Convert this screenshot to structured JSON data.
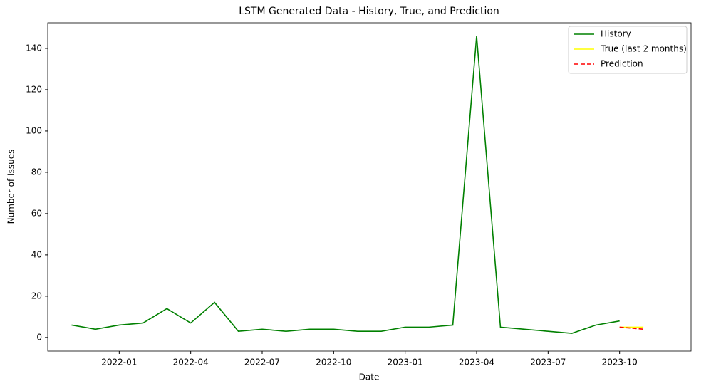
{
  "chart_data": {
    "type": "line",
    "title": "LSTM Generated Data - History, True, and Prediction",
    "x_label": "Date",
    "y_label": "Number of Issues",
    "x": [
      "2021-11",
      "2021-12",
      "2022-01",
      "2022-02",
      "2022-03",
      "2022-04",
      "2022-05",
      "2022-06",
      "2022-07",
      "2022-08",
      "2022-09",
      "2022-10",
      "2022-11",
      "2022-12",
      "2023-01",
      "2023-02",
      "2023-03",
      "2023-04",
      "2023-05",
      "2023-06",
      "2023-07",
      "2023-08",
      "2023-09",
      "2023-10",
      "2023-11"
    ],
    "series": [
      {
        "name": "History",
        "color": "#008000",
        "dash": false,
        "values": [
          6,
          4,
          6,
          7,
          14,
          7,
          17,
          3,
          4,
          3,
          4,
          4,
          3,
          3,
          5,
          5,
          6,
          146,
          5,
          4,
          3,
          2,
          6,
          8,
          null
        ]
      },
      {
        "name": "True (last 2 months)",
        "color": "#ffff00",
        "dash": false,
        "values": [
          null,
          null,
          null,
          null,
          null,
          null,
          null,
          null,
          null,
          null,
          null,
          null,
          null,
          null,
          null,
          null,
          null,
          null,
          null,
          null,
          null,
          null,
          null,
          5,
          5
        ]
      },
      {
        "name": "Prediction",
        "color": "#ff0000",
        "dash": true,
        "values": [
          null,
          null,
          null,
          null,
          null,
          null,
          null,
          null,
          null,
          null,
          null,
          null,
          null,
          null,
          null,
          null,
          null,
          null,
          null,
          null,
          null,
          null,
          null,
          5,
          4
        ]
      }
    ],
    "xlim": [
      "2021-10",
      "2024-01"
    ],
    "xticks": [
      "2022-01",
      "2022-04",
      "2022-07",
      "2022-10",
      "2023-01",
      "2023-04",
      "2023-07",
      "2023-10"
    ],
    "ylim": [
      -6.6,
      152.4
    ],
    "yticks": [
      0,
      20,
      40,
      60,
      80,
      100,
      120,
      140
    ],
    "legend": "upper-right"
  }
}
